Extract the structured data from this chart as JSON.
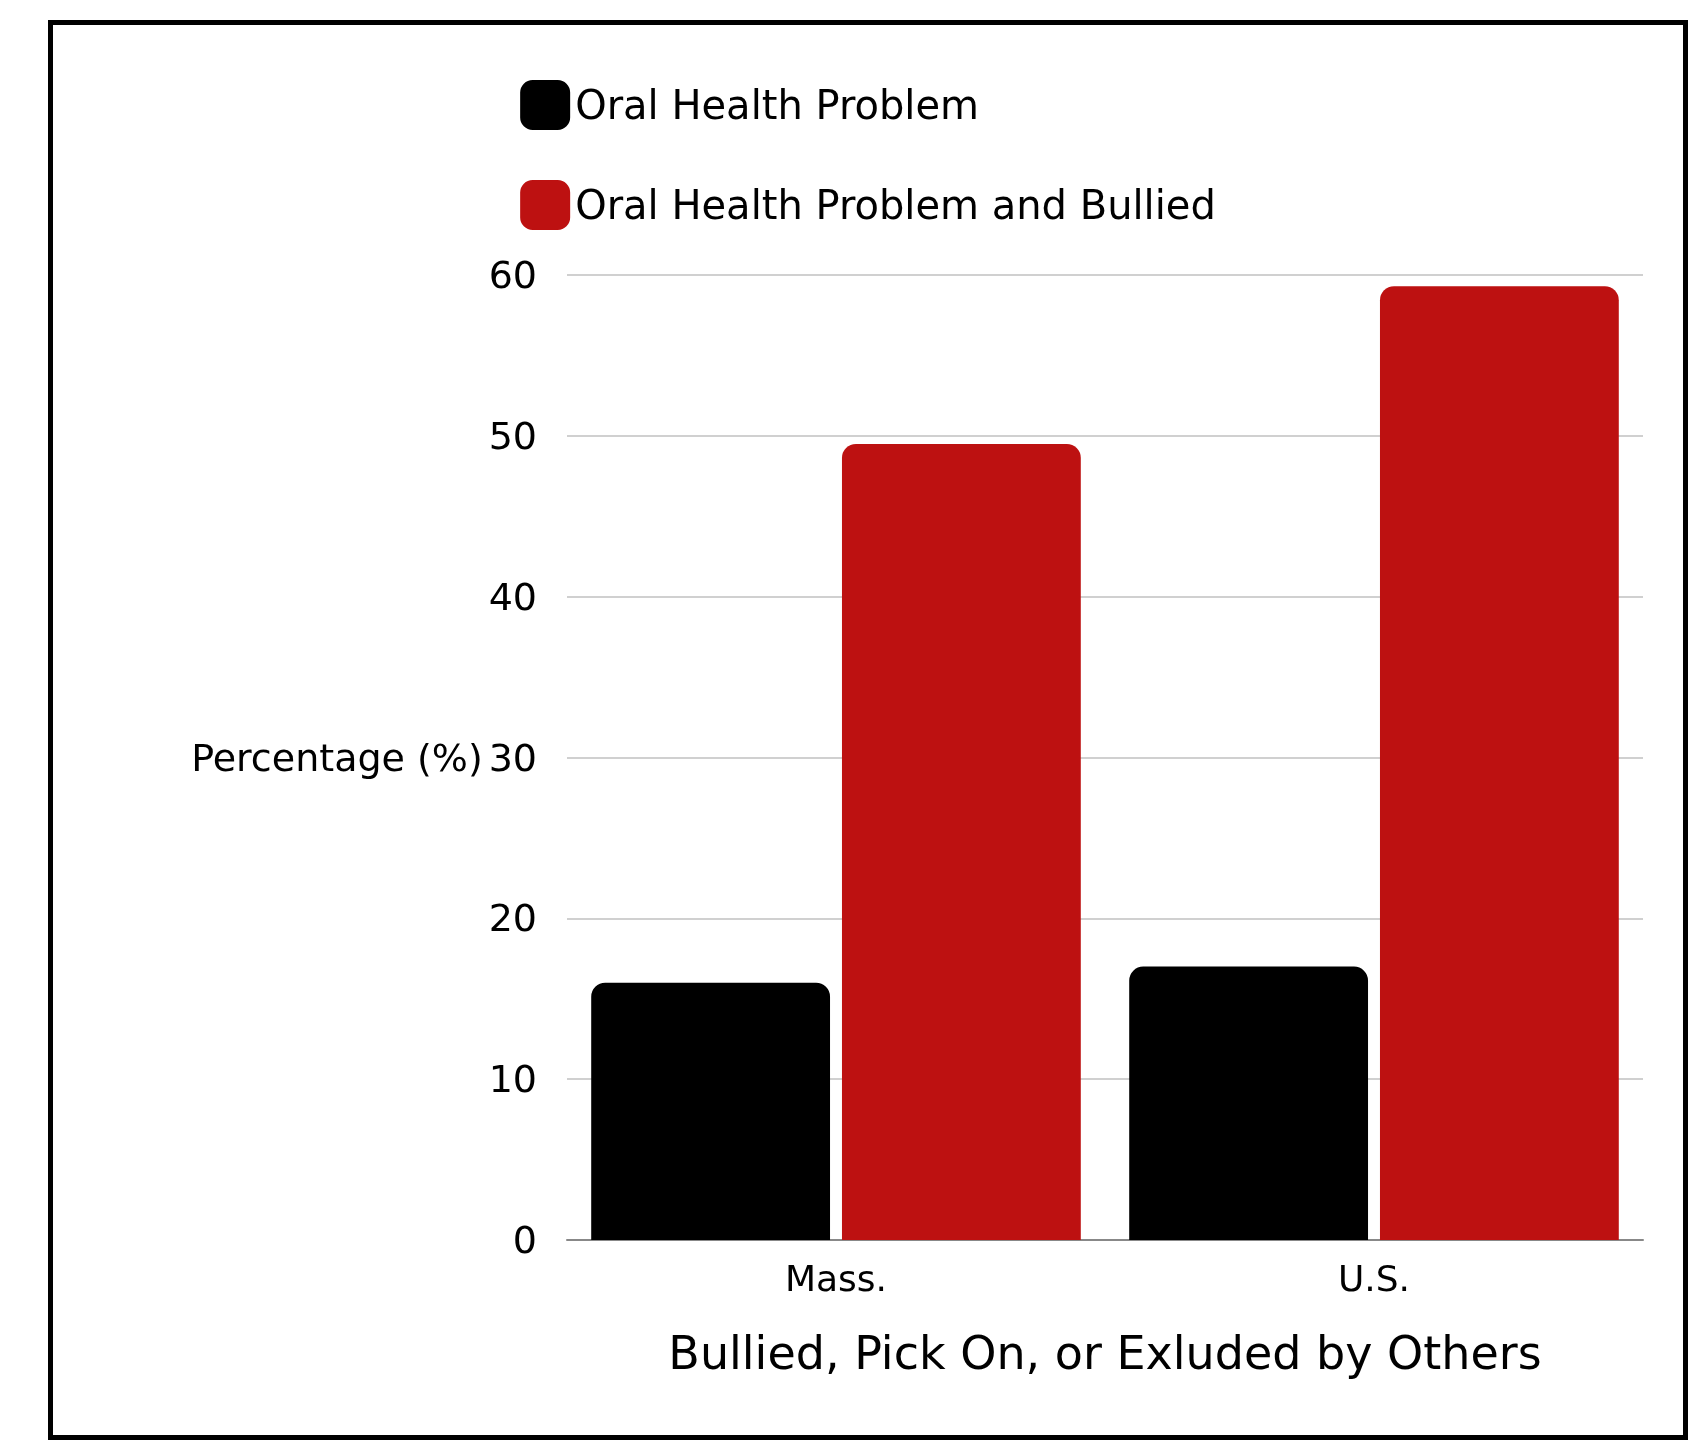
{
  "chart_data": {
    "type": "bar",
    "xlabel": "Bullied, Pick On, or Exluded by Others",
    "ylabel": "Percentage (%)",
    "categories": [
      "Mass.",
      "U.S."
    ],
    "series": [
      {
        "name": "Oral Health Problem",
        "color": "#000000",
        "values": [
          16,
          17
        ]
      },
      {
        "name": "Oral Health Problem and Bullied",
        "color": "#bd1111",
        "values": [
          49.5,
          59.3
        ]
      }
    ],
    "ylim": [
      0,
      60
    ],
    "yticks": [
      0,
      10,
      20,
      30,
      40,
      50,
      60
    ],
    "grid": "y",
    "legend": "top"
  }
}
